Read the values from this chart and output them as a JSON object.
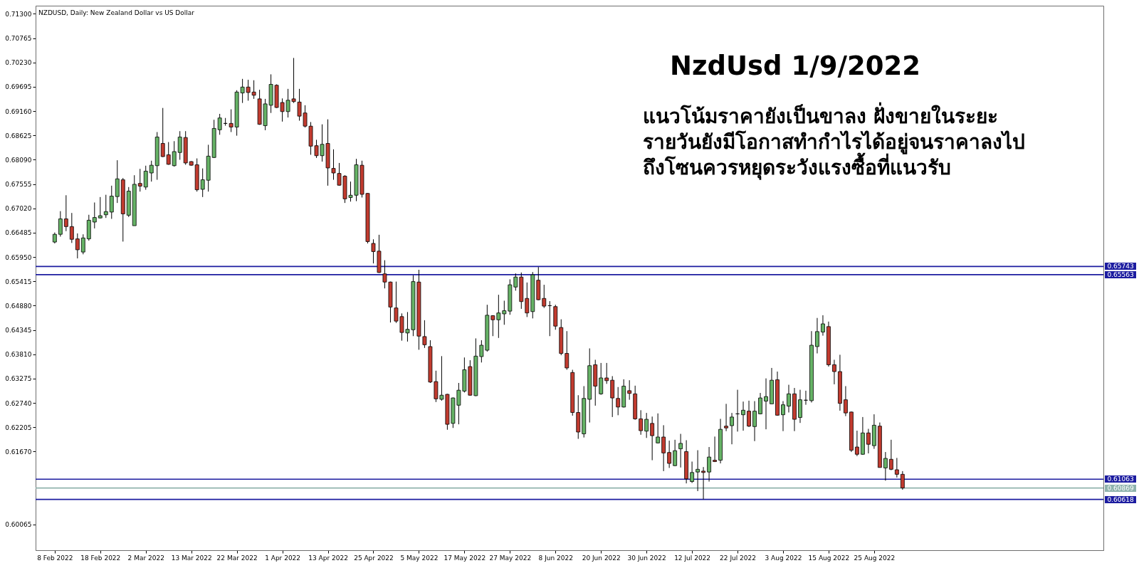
{
  "chart_data": {
    "type": "candlestick",
    "title": "NZDUSD, Daily: New Zealand Dollar vs US Dollar",
    "annotations": [
      "NzdUsd 1/9/2022",
      "แนวโน้มราคายังเป็นขาลง ฝั่งขายในระยะ",
      "รายวันยังมีโอกาสทำกำไรได้อยู่จนราคาลงไป",
      "ถึงโซนควรหยุดระวังแรงซื้อที่แนวรับ"
    ],
    "categories": [
      "8 Feb 2022",
      null,
      null,
      null,
      null,
      null,
      null,
      null,
      "18 Feb 2022",
      null,
      null,
      null,
      null,
      null,
      null,
      null,
      "2 Mar 2022",
      null,
      null,
      null,
      null,
      null,
      null,
      null,
      "13 Mar 2022",
      null,
      null,
      null,
      null,
      null,
      null,
      null,
      "22 Mar 2022",
      null,
      null,
      null,
      null,
      null,
      null,
      null,
      "1 Apr 2022",
      null,
      null,
      null,
      null,
      null,
      null,
      null,
      "13 Apr 2022",
      null,
      null,
      null,
      null,
      null,
      null,
      null,
      "25 Apr 2022",
      null,
      null,
      null,
      null,
      null,
      null,
      null,
      "5 May 2022",
      null,
      null,
      null,
      null,
      null,
      null,
      null,
      "17 May 2022",
      null,
      null,
      null,
      null,
      null,
      null,
      null,
      "27 May 2022",
      null,
      null,
      null,
      null,
      null,
      null,
      null,
      "8 Jun 2022",
      null,
      null,
      null,
      null,
      null,
      null,
      null,
      "20 Jun 2022",
      null,
      null,
      null,
      null,
      null,
      null,
      null,
      "30 Jun 2022",
      null,
      null,
      null,
      null,
      null,
      null,
      null,
      "12 Jul 2022",
      null,
      null,
      null,
      null,
      null,
      null,
      null,
      "22 Jul 2022",
      null,
      null,
      null,
      null,
      null,
      null,
      null,
      "3 Aug 2022",
      null,
      null,
      null,
      null,
      null,
      null,
      null,
      "15 Aug 2022",
      null,
      null,
      null,
      null,
      null,
      null,
      null,
      "25 Aug 2022",
      null,
      null,
      null,
      null,
      null
    ],
    "ohlc": [
      [
        0.6628,
        0.6649,
        0.6625,
        0.6645
      ],
      [
        0.6645,
        0.6696,
        0.664,
        0.6679
      ],
      [
        0.6679,
        0.6731,
        0.6652,
        0.6662
      ],
      [
        0.6662,
        0.6692,
        0.6626,
        0.6634
      ],
      [
        0.6635,
        0.6647,
        0.6592,
        0.6611
      ],
      [
        0.6606,
        0.6645,
        0.6601,
        0.6637
      ],
      [
        0.6635,
        0.6688,
        0.6631,
        0.6676
      ],
      [
        0.6672,
        0.6715,
        0.6658,
        0.6682
      ],
      [
        0.6681,
        0.6727,
        0.668,
        0.6686
      ],
      [
        0.6688,
        0.6732,
        0.6681,
        0.6695
      ],
      [
        0.6694,
        0.6752,
        0.6679,
        0.6729
      ],
      [
        0.6728,
        0.6808,
        0.6714,
        0.6767
      ],
      [
        0.6765,
        0.6769,
        0.6629,
        0.669
      ],
      [
        0.6687,
        0.6749,
        0.6683,
        0.674
      ],
      [
        0.6664,
        0.6775,
        0.6664,
        0.6755
      ],
      [
        0.6757,
        0.6789,
        0.6739,
        0.6751
      ],
      [
        0.6749,
        0.6796,
        0.6743,
        0.6784
      ],
      [
        0.678,
        0.6807,
        0.6761,
        0.6797
      ],
      [
        0.6796,
        0.687,
        0.6765,
        0.6859
      ],
      [
        0.6845,
        0.6923,
        0.6815,
        0.6816
      ],
      [
        0.682,
        0.6848,
        0.6798,
        0.6799
      ],
      [
        0.6796,
        0.685,
        0.6794,
        0.6827
      ],
      [
        0.6825,
        0.6872,
        0.6809,
        0.6859
      ],
      [
        0.6858,
        0.6872,
        0.6798,
        0.6802
      ],
      [
        0.6805,
        0.6806,
        0.6796,
        0.6797
      ],
      [
        0.6798,
        0.6812,
        0.6739,
        0.6743
      ],
      [
        0.6744,
        0.679,
        0.6727,
        0.6765
      ],
      [
        0.6764,
        0.6842,
        0.6739,
        0.6817
      ],
      [
        0.6814,
        0.6897,
        0.6813,
        0.6878
      ],
      [
        0.6875,
        0.691,
        0.6864,
        0.6901
      ],
      [
        0.6889,
        0.6901,
        0.6884,
        0.6889
      ],
      [
        0.6889,
        0.692,
        0.687,
        0.6881
      ],
      [
        0.6881,
        0.6962,
        0.6862,
        0.6958
      ],
      [
        0.6956,
        0.6987,
        0.6934,
        0.6969
      ],
      [
        0.6969,
        0.6985,
        0.6939,
        0.6957
      ],
      [
        0.6958,
        0.6984,
        0.6943,
        0.6951
      ],
      [
        0.6943,
        0.6963,
        0.6886,
        0.6887
      ],
      [
        0.6884,
        0.6943,
        0.6874,
        0.6932
      ],
      [
        0.6929,
        0.6997,
        0.6912,
        0.6975
      ],
      [
        0.6973,
        0.6975,
        0.6923,
        0.6924
      ],
      [
        0.6935,
        0.6944,
        0.6893,
        0.6915
      ],
      [
        0.6915,
        0.6965,
        0.6902,
        0.694
      ],
      [
        0.6943,
        0.7033,
        0.6934,
        0.6937
      ],
      [
        0.6936,
        0.6965,
        0.6895,
        0.6905
      ],
      [
        0.6912,
        0.6929,
        0.688,
        0.6883
      ],
      [
        0.6883,
        0.6892,
        0.682,
        0.6839
      ],
      [
        0.684,
        0.6853,
        0.6813,
        0.6818
      ],
      [
        0.6818,
        0.6887,
        0.6805,
        0.6843
      ],
      [
        0.6845,
        0.6898,
        0.6752,
        0.6791
      ],
      [
        0.679,
        0.6832,
        0.6765,
        0.678
      ],
      [
        0.6779,
        0.6802,
        0.6752,
        0.6753
      ],
      [
        0.6773,
        0.6775,
        0.6714,
        0.6723
      ],
      [
        0.6726,
        0.6761,
        0.6717,
        0.6731
      ],
      [
        0.6731,
        0.6811,
        0.6718,
        0.6798
      ],
      [
        0.6797,
        0.6807,
        0.6726,
        0.6733
      ],
      [
        0.6735,
        0.6736,
        0.6625,
        0.6629
      ],
      [
        0.6625,
        0.6634,
        0.6581,
        0.6607
      ],
      [
        0.6608,
        0.6644,
        0.656,
        0.6561
      ],
      [
        0.6558,
        0.6588,
        0.6526,
        0.654
      ],
      [
        0.654,
        0.6541,
        0.6451,
        0.6485
      ],
      [
        0.6483,
        0.6541,
        0.645,
        0.6454
      ],
      [
        0.6464,
        0.6471,
        0.6411,
        0.6429
      ],
      [
        0.6428,
        0.6474,
        0.6409,
        0.6436
      ],
      [
        0.6435,
        0.6555,
        0.6421,
        0.6541
      ],
      [
        0.654,
        0.6567,
        0.6391,
        0.6421
      ],
      [
        0.642,
        0.6456,
        0.6395,
        0.6402
      ],
      [
        0.6398,
        0.6412,
        0.6318,
        0.632
      ],
      [
        0.6321,
        0.6345,
        0.6276,
        0.6283
      ],
      [
        0.6282,
        0.6377,
        0.6279,
        0.6291
      ],
      [
        0.6293,
        0.6294,
        0.6215,
        0.6227
      ],
      [
        0.6229,
        0.6286,
        0.6219,
        0.6285
      ],
      [
        0.6269,
        0.6318,
        0.6227,
        0.6302
      ],
      [
        0.63,
        0.6374,
        0.6297,
        0.6347
      ],
      [
        0.6354,
        0.6368,
        0.629,
        0.6291
      ],
      [
        0.629,
        0.6416,
        0.6289,
        0.6377
      ],
      [
        0.6376,
        0.6412,
        0.6363,
        0.6401
      ],
      [
        0.639,
        0.649,
        0.6387,
        0.6467
      ],
      [
        0.6466,
        0.6467,
        0.6421,
        0.6457
      ],
      [
        0.6457,
        0.6512,
        0.6417,
        0.6472
      ],
      [
        0.647,
        0.6499,
        0.6446,
        0.6477
      ],
      [
        0.6476,
        0.6546,
        0.6468,
        0.6534
      ],
      [
        0.6529,
        0.6559,
        0.6521,
        0.6551
      ],
      [
        0.6551,
        0.6561,
        0.6481,
        0.6497
      ],
      [
        0.6504,
        0.6539,
        0.6463,
        0.6472
      ],
      [
        0.6475,
        0.6562,
        0.646,
        0.6556
      ],
      [
        0.6544,
        0.6573,
        0.65,
        0.6501
      ],
      [
        0.6504,
        0.6534,
        0.6483,
        0.6487
      ],
      [
        0.6488,
        0.6498,
        0.6421,
        0.6488
      ],
      [
        0.6486,
        0.649,
        0.6435,
        0.6443
      ],
      [
        0.644,
        0.6458,
        0.6379,
        0.6383
      ],
      [
        0.6383,
        0.6432,
        0.6347,
        0.6351
      ],
      [
        0.6341,
        0.6347,
        0.6246,
        0.6253
      ],
      [
        0.6253,
        0.6291,
        0.6195,
        0.621
      ],
      [
        0.6206,
        0.6311,
        0.6198,
        0.6284
      ],
      [
        0.6282,
        0.6394,
        0.6231,
        0.6356
      ],
      [
        0.6358,
        0.6369,
        0.6268,
        0.6311
      ],
      [
        0.6294,
        0.6362,
        0.6292,
        0.6329
      ],
      [
        0.6329,
        0.6362,
        0.6316,
        0.6323
      ],
      [
        0.6324,
        0.6333,
        0.6243,
        0.6285
      ],
      [
        0.6284,
        0.6309,
        0.6247,
        0.6265
      ],
      [
        0.6265,
        0.6326,
        0.6264,
        0.6311
      ],
      [
        0.6301,
        0.6324,
        0.6281,
        0.6295
      ],
      [
        0.6294,
        0.6312,
        0.6237,
        0.6239
      ],
      [
        0.6239,
        0.6258,
        0.6204,
        0.6213
      ],
      [
        0.6212,
        0.6252,
        0.6197,
        0.6238
      ],
      [
        0.6229,
        0.6244,
        0.6148,
        0.6202
      ],
      [
        0.6186,
        0.6251,
        0.6185,
        0.6199
      ],
      [
        0.6199,
        0.6225,
        0.6124,
        0.6164
      ],
      [
        0.6165,
        0.6191,
        0.6131,
        0.6141
      ],
      [
        0.6136,
        0.6193,
        0.6135,
        0.6169
      ],
      [
        0.6173,
        0.6206,
        0.6132,
        0.6185
      ],
      [
        0.6167,
        0.6192,
        0.6097,
        0.6107
      ],
      [
        0.6101,
        0.6145,
        0.6098,
        0.6121
      ],
      [
        0.6122,
        0.617,
        0.608,
        0.6128
      ],
      [
        0.6124,
        0.6133,
        0.6062,
        0.6121
      ],
      [
        0.6122,
        0.6177,
        0.6101,
        0.6155
      ],
      [
        0.6148,
        0.62,
        0.6144,
        0.6145
      ],
      [
        0.6148,
        0.6239,
        0.6141,
        0.6216
      ],
      [
        0.6223,
        0.6272,
        0.6212,
        0.6219
      ],
      [
        0.6224,
        0.6252,
        0.6183,
        0.6243
      ],
      [
        0.625,
        0.6303,
        0.6211,
        0.625
      ],
      [
        0.6248,
        0.6277,
        0.6213,
        0.6258
      ],
      [
        0.6256,
        0.6279,
        0.6221,
        0.6223
      ],
      [
        0.6222,
        0.6278,
        0.619,
        0.6256
      ],
      [
        0.625,
        0.6296,
        0.6249,
        0.6285
      ],
      [
        0.6278,
        0.6328,
        0.6216,
        0.6288
      ],
      [
        0.6272,
        0.6351,
        0.6272,
        0.6324
      ],
      [
        0.6325,
        0.6343,
        0.6246,
        0.6247
      ],
      [
        0.6248,
        0.6278,
        0.6212,
        0.627
      ],
      [
        0.6267,
        0.6314,
        0.6253,
        0.6294
      ],
      [
        0.6294,
        0.6307,
        0.6212,
        0.6238
      ],
      [
        0.6242,
        0.6303,
        0.623,
        0.6281
      ],
      [
        0.628,
        0.6301,
        0.627,
        0.628
      ],
      [
        0.6279,
        0.6432,
        0.6275,
        0.6401
      ],
      [
        0.6398,
        0.6461,
        0.6383,
        0.6431
      ],
      [
        0.643,
        0.6467,
        0.6422,
        0.6448
      ],
      [
        0.6442,
        0.6453,
        0.6354,
        0.6358
      ],
      [
        0.6358,
        0.6369,
        0.6315,
        0.6343
      ],
      [
        0.6343,
        0.638,
        0.6257,
        0.6273
      ],
      [
        0.6281,
        0.6311,
        0.6245,
        0.6252
      ],
      [
        0.6254,
        0.6255,
        0.6166,
        0.617
      ],
      [
        0.6177,
        0.6213,
        0.6157,
        0.6161
      ],
      [
        0.6161,
        0.6243,
        0.616,
        0.6208
      ],
      [
        0.6208,
        0.6217,
        0.6163,
        0.6183
      ],
      [
        0.618,
        0.6249,
        0.6173,
        0.6225
      ],
      [
        0.6223,
        0.6231,
        0.6132,
        0.6132
      ],
      [
        0.6131,
        0.6166,
        0.6103,
        0.6152
      ],
      [
        0.615,
        0.6193,
        0.6126,
        0.6128
      ],
      [
        0.6127,
        0.6153,
        0.611,
        0.6117
      ],
      [
        0.6117,
        0.6124,
        0.6083,
        0.6087
      ]
    ],
    "colors": [
      "#66b366",
      "#66b366",
      "#c23b2f",
      "#c23b2f",
      "#c23b2f",
      "#66b366",
      "#66b366",
      "#66b366",
      "#66b366",
      "#66b366",
      "#66b366",
      "#66b366",
      "#c23b2f",
      "#66b366",
      "#66b366",
      "#c23b2f",
      "#66b366",
      "#66b366",
      "#66b366",
      "#c23b2f",
      "#c23b2f",
      "#66b366",
      "#66b366",
      "#c23b2f",
      "#c23b2f",
      "#c23b2f",
      "#66b366",
      "#66b366",
      "#66b366",
      "#66b366",
      "#000000",
      "#c23b2f",
      "#66b366",
      "#66b366",
      "#c23b2f",
      "#c23b2f",
      "#c23b2f",
      "#66b366",
      "#66b366",
      "#c23b2f",
      "#c23b2f",
      "#66b366",
      "#c23b2f",
      "#c23b2f",
      "#c23b2f",
      "#c23b2f",
      "#c23b2f",
      "#66b366",
      "#c23b2f",
      "#c23b2f",
      "#c23b2f",
      "#c23b2f",
      "#66b366",
      "#66b366",
      "#c23b2f",
      "#c23b2f",
      "#c23b2f",
      "#c23b2f",
      "#c23b2f",
      "#c23b2f",
      "#c23b2f",
      "#c23b2f",
      "#66b366",
      "#66b366",
      "#c23b2f",
      "#c23b2f",
      "#c23b2f",
      "#c23b2f",
      "#66b366",
      "#c23b2f",
      "#66b366",
      "#66b366",
      "#66b366",
      "#c23b2f",
      "#66b366",
      "#66b366",
      "#66b366",
      "#c23b2f",
      "#66b366",
      "#66b366",
      "#66b366",
      "#66b366",
      "#c23b2f",
      "#c23b2f",
      "#66b366",
      "#c23b2f",
      "#c23b2f",
      "#000000",
      "#c23b2f",
      "#c23b2f",
      "#c23b2f",
      "#c23b2f",
      "#c23b2f",
      "#66b366",
      "#66b366",
      "#c23b2f",
      "#66b366",
      "#c23b2f",
      "#c23b2f",
      "#c23b2f",
      "#66b366",
      "#c23b2f",
      "#c23b2f",
      "#c23b2f",
      "#66b366",
      "#c23b2f",
      "#66b366",
      "#c23b2f",
      "#c23b2f",
      "#66b366",
      "#66b366",
      "#c23b2f",
      "#66b366",
      "#66b366",
      "#c23b2f",
      "#66b366",
      "#c23b2f",
      "#66b366",
      "#c23b2f",
      "#66b366",
      "#000000",
      "#66b366",
      "#c23b2f",
      "#66b366",
      "#66b366",
      "#66b366",
      "#66b366",
      "#c23b2f",
      "#66b366",
      "#66b366",
      "#c23b2f",
      "#66b366",
      "#000000",
      "#66b366",
      "#66b366",
      "#66b366",
      "#c23b2f",
      "#c23b2f",
      "#c23b2f",
      "#c23b2f",
      "#c23b2f",
      "#c23b2f",
      "#66b366",
      "#c23b2f",
      "#66b366",
      "#c23b2f",
      "#66b366",
      "#c23b2f",
      "#c23b2f",
      "#c23b2f"
    ],
    "ylim": [
      0.595,
      0.7148
    ],
    "yticks": [
      {
        "value": 0.713,
        "label": "0.71300"
      },
      {
        "value": 0.70765,
        "label": "0.70765"
      },
      {
        "value": 0.7023,
        "label": "0.70230"
      },
      {
        "value": 0.69695,
        "label": "0.69695"
      },
      {
        "value": 0.6916,
        "label": "0.69160"
      },
      {
        "value": 0.68625,
        "label": "0.68625"
      },
      {
        "value": 0.6809,
        "label": "0.68090"
      },
      {
        "value": 0.67555,
        "label": "0.67555"
      },
      {
        "value": 0.6702,
        "label": "0.67020"
      },
      {
        "value": 0.66485,
        "label": "0.66485"
      },
      {
        "value": 0.6595,
        "label": "0.65950"
      },
      {
        "value": 0.65415,
        "label": "0.65415"
      },
      {
        "value": 0.6488,
        "label": "0.64880"
      },
      {
        "value": 0.64345,
        "label": "0.64345"
      },
      {
        "value": 0.6381,
        "label": "0.63810"
      },
      {
        "value": 0.63275,
        "label": "0.63275"
      },
      {
        "value": 0.6274,
        "label": "0.62740"
      },
      {
        "value": 0.62205,
        "label": "0.62205"
      },
      {
        "value": 0.6167,
        "label": "0.61670"
      },
      {
        "value": 0.60065,
        "label": "0.60065"
      }
    ],
    "ref_lines": [
      {
        "axis": "y",
        "value": 0.65743,
        "label": "0.65743",
        "color": "#1c1ca0"
      },
      {
        "axis": "y",
        "value": 0.65563,
        "label": "0.65563",
        "color": "#1c1ca0"
      },
      {
        "axis": "y",
        "value": 0.61063,
        "label": "0.61063",
        "color": "#1c1ca0"
      },
      {
        "axis": "y",
        "value": 0.60869,
        "label": "0.60869",
        "color": "#8fb3ad"
      },
      {
        "axis": "y",
        "value": 0.60618,
        "label": "0.60618",
        "color": "#1c1ca0"
      }
    ],
    "grid": false
  }
}
